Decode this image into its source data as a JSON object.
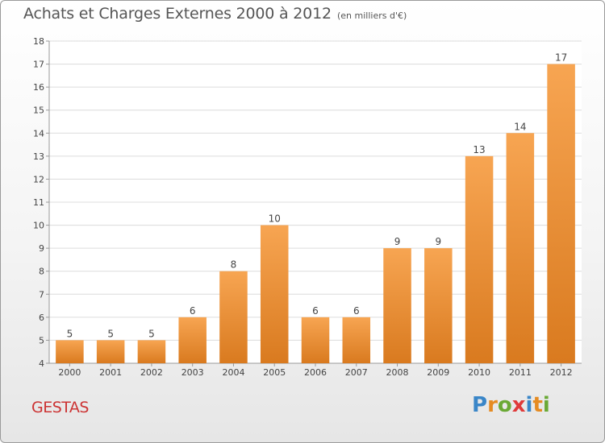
{
  "header": {
    "title": "Achats et Charges Externes 2000 à 2012",
    "subtitle": "(en milliers d'€)"
  },
  "footer": {
    "commune": "GESTAS",
    "logo_letters": [
      "P",
      "r",
      "o",
      "x",
      "i",
      "t",
      "i"
    ],
    "logo_colors": [
      "#3a86c8",
      "#e58b22",
      "#6aa935",
      "#e03a3a",
      "#3a86c8",
      "#e58b22",
      "#6aa935"
    ]
  },
  "colors": {
    "bar_top": "#f7a552",
    "bar_bottom": "#d97a1f",
    "grid": "#dcdcdc",
    "axis": "#999999"
  },
  "chart_data": {
    "type": "bar",
    "title": "Achats et Charges Externes 2000 à 2012",
    "subtitle": "(en milliers d'€)",
    "categories": [
      "2000",
      "2001",
      "2002",
      "2003",
      "2004",
      "2005",
      "2006",
      "2007",
      "2008",
      "2009",
      "2010",
      "2011",
      "2012"
    ],
    "values": [
      5,
      5,
      5,
      6,
      8,
      10,
      6,
      6,
      9,
      9,
      13,
      14,
      17
    ],
    "ylim": [
      4,
      18
    ],
    "yticks": [
      4,
      5,
      6,
      7,
      8,
      9,
      10,
      11,
      12,
      13,
      14,
      15,
      16,
      17,
      18
    ],
    "grid": true
  }
}
